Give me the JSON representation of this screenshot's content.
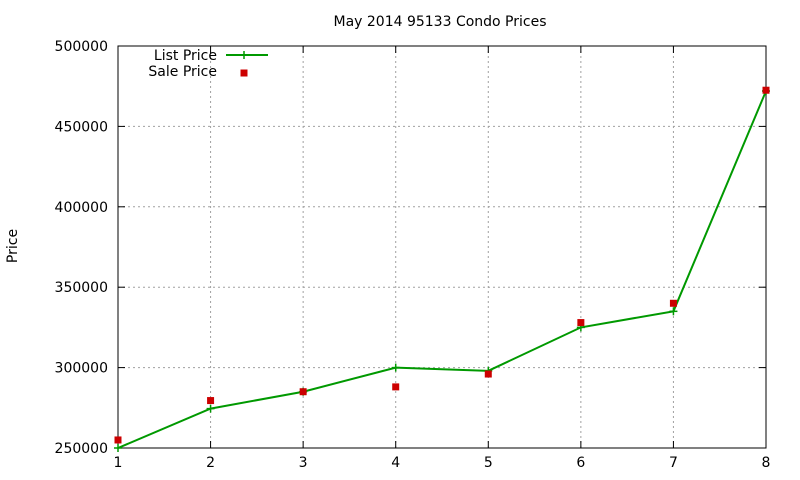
{
  "chart_data": {
    "type": "line",
    "title": "May 2014 95133 Condo Prices",
    "xlabel": "",
    "ylabel": "Price",
    "x": [
      1,
      2,
      3,
      4,
      5,
      6,
      7,
      8
    ],
    "xlim": [
      1,
      8
    ],
    "ylim": [
      250000,
      500000
    ],
    "xticks": [
      1,
      2,
      3,
      4,
      5,
      6,
      7,
      8
    ],
    "yticks": [
      250000,
      300000,
      350000,
      400000,
      450000,
      500000
    ],
    "grid": true,
    "legend_position": "top-left",
    "series": [
      {
        "name": "List Price",
        "style": "line-points",
        "marker": "plus",
        "color": "#009900",
        "values": [
          250000,
          274500,
          285000,
          300000,
          298000,
          325000,
          335000,
          472000
        ]
      },
      {
        "name": "Sale Price",
        "style": "points",
        "marker": "square",
        "color": "#cc0000",
        "values": [
          255000,
          279500,
          285000,
          288000,
          296000,
          328000,
          340000,
          472500
        ]
      }
    ]
  }
}
